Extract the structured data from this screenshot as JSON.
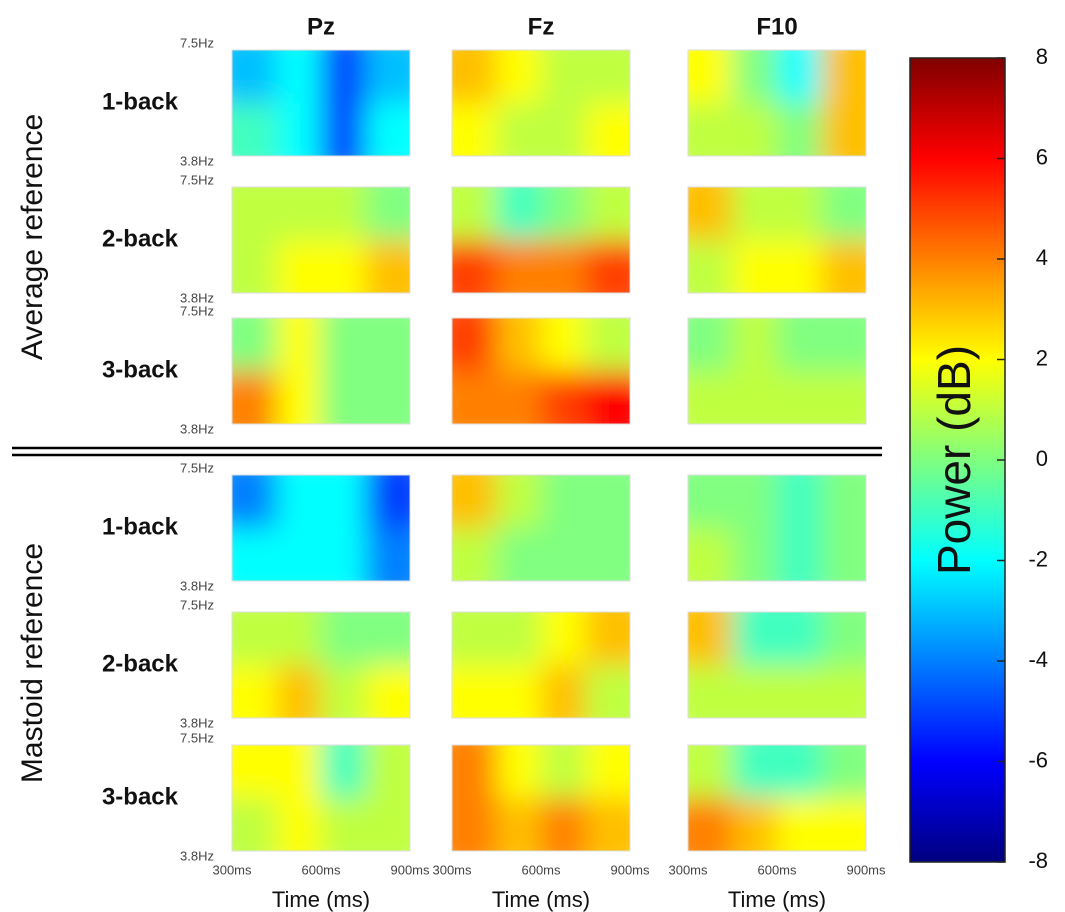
{
  "chart_data": {
    "type": "heatmap-grid",
    "columns": [
      "Pz",
      "Fz",
      "F10"
    ],
    "xlabel": "Time (ms)",
    "xticks": [
      {
        "value": 300,
        "label": "300ms"
      },
      {
        "value": 600,
        "label": "600ms"
      },
      {
        "value": 900,
        "label": "900ms"
      }
    ],
    "xlim": [
      300,
      900
    ],
    "yticks": [
      {
        "value": 7.5,
        "label": "7.5Hz"
      },
      {
        "value": 3.8,
        "label": "3.8Hz"
      }
    ],
    "ylim": [
      3.8,
      7.5
    ],
    "colorbar": {
      "label": "Power (dB)",
      "lim": [
        -8,
        8
      ],
      "ticks": [
        -8,
        -6,
        -4,
        -2,
        0,
        2,
        4,
        6,
        8
      ]
    },
    "sections": [
      {
        "name": "Average reference",
        "rows": [
          {
            "label": "1-back",
            "panels": [
              [
                [
                  -3,
                  -2,
                  -5,
                  -3
                ],
                [
                  -1,
                  -2,
                  -5,
                  -2
                ]
              ],
              [
                [
                  3,
                  2,
                  1,
                  1
                ],
                [
                  2,
                  1,
                  1,
                  2
                ]
              ],
              [
                [
                  2,
                  0,
                  -2,
                  3
                ],
                [
                  1,
                  1,
                  0,
                  3
                ]
              ]
            ]
          },
          {
            "label": "2-back",
            "panels": [
              [
                [
                  1,
                  1,
                  1,
                  0
                ],
                [
                  1,
                  2,
                  2,
                  3
                ]
              ],
              [
                [
                  1,
                  -1,
                  0,
                  1
                ],
                [
                  5,
                  4,
                  4,
                  5
                ]
              ],
              [
                [
                  3,
                  1,
                  1,
                  0
                ],
                [
                  1,
                  2,
                  2,
                  3
                ]
              ]
            ]
          },
          {
            "label": "3-back",
            "panels": [
              [
                [
                  0,
                  2,
                  0,
                  0
                ],
                [
                  4,
                  2,
                  0,
                  0
                ]
              ],
              [
                [
                  5,
                  3,
                  2,
                  1
                ],
                [
                  4,
                  4,
                  5,
                  6
                ]
              ],
              [
                [
                  0,
                  1,
                  0,
                  0
                ],
                [
                  1,
                  1,
                  1,
                  1
                ]
              ]
            ]
          }
        ]
      },
      {
        "name": "Mastoid reference",
        "rows": [
          {
            "label": "1-back",
            "panels": [
              [
                [
                  -4,
                  -2,
                  -2,
                  -5
                ],
                [
                  -2,
                  -2,
                  -2,
                  -4
                ]
              ],
              [
                [
                  3,
                  1,
                  0,
                  0
                ],
                [
                  1,
                  0,
                  0,
                  0
                ]
              ],
              [
                [
                  0,
                  0,
                  -1,
                  0
                ],
                [
                  1,
                  0,
                  -1,
                  0
                ]
              ]
            ]
          },
          {
            "label": "2-back",
            "panels": [
              [
                [
                  1,
                  1,
                  0,
                  0
                ],
                [
                  2,
                  3,
                  1,
                  2
                ]
              ],
              [
                [
                  1,
                  1,
                  2,
                  3
                ],
                [
                  2,
                  2,
                  3,
                  1
                ]
              ],
              [
                [
                  3,
                  -1,
                  -1,
                  0
                ],
                [
                  1,
                  1,
                  1,
                  1
                ]
              ]
            ]
          },
          {
            "label": "3-back",
            "panels": [
              [
                [
                  2,
                  2,
                  -1,
                  1
                ],
                [
                  1,
                  2,
                  1,
                  1
                ]
              ],
              [
                [
                  4,
                  2,
                  1,
                  2
                ],
                [
                  4,
                  3,
                  4,
                  3
                ]
              ],
              [
                [
                  1,
                  -1,
                  -1,
                  0
                ],
                [
                  4,
                  3,
                  2,
                  2
                ]
              ]
            ]
          }
        ]
      }
    ]
  }
}
